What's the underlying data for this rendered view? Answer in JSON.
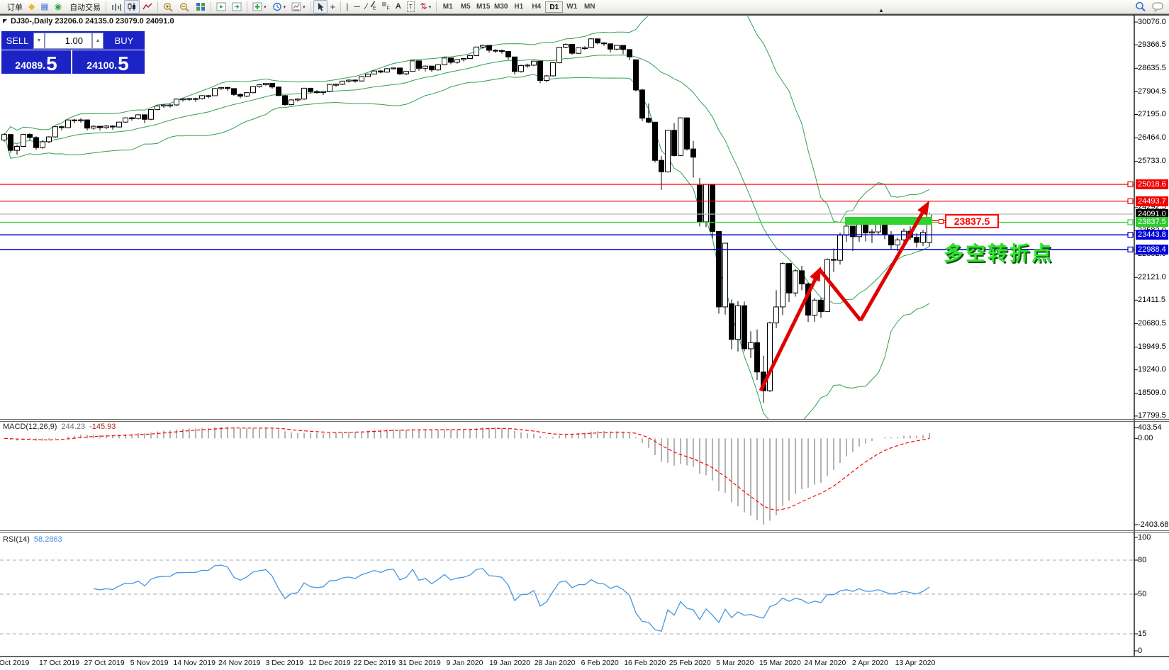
{
  "toolbar": {
    "new_order_label": "订单",
    "autotrading_label": "自动交易",
    "items": [
      {
        "kind": "button",
        "name": "new-order",
        "icon": "form",
        "label_key": "new_order_label"
      },
      {
        "kind": "icon",
        "name": "gold"
      },
      {
        "kind": "icon",
        "name": "reports"
      },
      {
        "kind": "icon",
        "name": "community"
      },
      {
        "kind": "button",
        "name": "autotrading",
        "icon": "playdot",
        "label_key": "autotrading_label"
      },
      {
        "kind": "sep"
      },
      {
        "kind": "icon",
        "name": "bar-chart"
      },
      {
        "kind": "icon",
        "name": "candle-chart",
        "active": true
      },
      {
        "kind": "icon",
        "name": "line-chart"
      },
      {
        "kind": "sep"
      },
      {
        "kind": "icon",
        "name": "zoom-in"
      },
      {
        "kind": "icon",
        "name": "zoom-out"
      },
      {
        "kind": "icon",
        "name": "tile-windows"
      },
      {
        "kind": "sep"
      },
      {
        "kind": "icon",
        "name": "auto-scroll"
      },
      {
        "kind": "icon",
        "name": "chart-shift"
      },
      {
        "kind": "sep"
      },
      {
        "kind": "icon",
        "name": "indicators",
        "caret": true
      },
      {
        "kind": "icon",
        "name": "periods",
        "caret": true
      },
      {
        "kind": "icon",
        "name": "templates",
        "caret": true
      },
      {
        "kind": "sep"
      },
      {
        "kind": "icon",
        "name": "cursor",
        "active": true
      },
      {
        "kind": "icon",
        "name": "crosshair"
      },
      {
        "kind": "sep"
      },
      {
        "kind": "icon",
        "name": "vertical-line"
      },
      {
        "kind": "icon",
        "name": "horizontal-line"
      },
      {
        "kind": "icon",
        "name": "trendline"
      },
      {
        "kind": "icon",
        "name": "channel"
      },
      {
        "kind": "icon",
        "name": "fibonacci"
      },
      {
        "kind": "icon",
        "name": "text"
      },
      {
        "kind": "icon",
        "name": "text-label"
      },
      {
        "kind": "icon",
        "name": "arrows",
        "caret": true
      },
      {
        "kind": "sep"
      }
    ],
    "timeframes": [
      "M1",
      "M5",
      "M15",
      "M30",
      "H1",
      "H4",
      "D1",
      "W1",
      "MN"
    ],
    "active_timeframe": "D1",
    "right_icons": [
      "search",
      "chat"
    ]
  },
  "chart": {
    "title": "DJ30-,Daily 23206.0 24135.0 23079.0 24091.0"
  },
  "quote": {
    "sell_label": "SELL",
    "buy_label": "BUY",
    "volume": "1.00",
    "sell_int": "24089",
    "sell_dot": ".",
    "sell_pip": "5",
    "buy_int": "24100",
    "buy_dot": ".",
    "buy_pip": "5"
  },
  "price_axis": {
    "ticks": [
      "30076.0",
      "29366.5",
      "28635.5",
      "27904.5",
      "27195.0",
      "26464.0",
      "25733.0",
      "24292.5",
      "23582.0",
      "22852.0",
      "22121.0",
      "21411.5",
      "20680.5",
      "19949.5",
      "19240.0",
      "18509.0",
      "17799.5"
    ],
    "objects": [
      {
        "text": "25018.6",
        "price": 25018.6,
        "bg": "#f20000",
        "line": "#f20000",
        "marker": true
      },
      {
        "text": "24493.7",
        "price": 24493.7,
        "bg": "#f20000",
        "line": "#f20000",
        "marker": true
      },
      {
        "text": "24091.0",
        "price": 24091.0,
        "bg": "#000000",
        "line": "#b8b8b8",
        "marker": false
      },
      {
        "text": "23837.5",
        "price": 23837.5,
        "bg": "#2fcb2f",
        "line": "#2fd32f",
        "marker": true
      },
      {
        "text": "23443.8",
        "price": 23443.8,
        "bg": "#0000dd",
        "line": "#0000cc",
        "marker": true
      },
      {
        "text": "22988.4",
        "price": 22988.4,
        "bg": "#0000dd",
        "line": "#0000cc",
        "marker": true
      }
    ]
  },
  "macd": {
    "name_label": "MACD(12,26,9)",
    "value": "244.23",
    "signal": "-145.93",
    "axis_labels": [
      "403.54",
      "0.00",
      "-2403.68"
    ]
  },
  "rsi": {
    "name_label": "RSI(14)",
    "value": "58.2863",
    "axis_labels": [
      "100",
      "80",
      "50",
      "15",
      "0"
    ],
    "levels": [
      80,
      50,
      15
    ]
  },
  "date_axis": {
    "labels": [
      "Oct 2019",
      "17 Oct 2019",
      "27 Oct 2019",
      "5 Nov 2019",
      "14 Nov 2019",
      "24 Nov 2019",
      "3 Dec 2019",
      "12 Dec 2019",
      "22 Dec 2019",
      "31 Dec 2019",
      "9 Jan 2020",
      "19 Jan 2020",
      "28 Jan 2020",
      "6 Feb 2020",
      "16 Feb 2020",
      "25 Feb 2020",
      "5 Mar 2020",
      "15 Mar 2020",
      "24 Mar 2020",
      "2 Apr 2020",
      "13 Apr 2020"
    ]
  },
  "annotations": {
    "price_label": "23837.5",
    "turning_text": "多空转折点"
  },
  "chart_data": {
    "type": "candlestick",
    "symbol": "DJ30-",
    "timeframe": "Daily",
    "title_ohlc": {
      "open": "23206.0",
      "high": "24135.0",
      "low": "23079.0",
      "close": "24091.0"
    },
    "price_range_visible": [
      17730,
      30210
    ],
    "horizontal_lines": [
      25018.6,
      24493.7,
      24091.0,
      23837.5,
      23443.8,
      22988.4
    ],
    "indicators": [
      {
        "name": "Bollinger Bands",
        "color": "green"
      },
      {
        "name": "MACD",
        "params": [
          12,
          26,
          9
        ],
        "value": 244.23,
        "signal": -145.93,
        "scale": [
          403.54,
          0.0,
          -2403.68
        ]
      },
      {
        "name": "RSI",
        "params": [
          14
        ],
        "value": 58.2863,
        "scale": [
          100,
          80,
          50,
          15,
          0
        ]
      }
    ],
    "candles": [
      [
        26400,
        26610,
        26350,
        26573
      ],
      [
        26573,
        26590,
        26000,
        26078
      ],
      [
        26078,
        26250,
        25940,
        26201
      ],
      [
        26201,
        26590,
        26180,
        26574
      ],
      [
        26574,
        26610,
        26400,
        26478
      ],
      [
        26478,
        26520,
        26100,
        26164
      ],
      [
        26164,
        26400,
        26130,
        26346
      ],
      [
        26346,
        26520,
        26300,
        26497
      ],
      [
        26497,
        26830,
        26470,
        26816
      ],
      [
        26816,
        26850,
        26700,
        26787
      ],
      [
        26787,
        27040,
        26770,
        27025
      ],
      [
        27025,
        27060,
        26920,
        27002
      ],
      [
        27002,
        27080,
        26940,
        27026
      ],
      [
        27026,
        27040,
        26700,
        26770
      ],
      [
        26770,
        26860,
        26720,
        26828
      ],
      [
        26828,
        26840,
        26700,
        26788
      ],
      [
        26788,
        26870,
        26740,
        26834
      ],
      [
        26834,
        26860,
        26720,
        26805
      ],
      [
        26805,
        26970,
        26790,
        26958
      ],
      [
        26958,
        27100,
        26940,
        27090
      ],
      [
        27090,
        27120,
        27000,
        27071
      ],
      [
        27071,
        27200,
        27040,
        27187
      ],
      [
        27187,
        27200,
        26920,
        27046
      ],
      [
        27046,
        27360,
        27020,
        27347
      ],
      [
        27347,
        27480,
        27330,
        27462
      ],
      [
        27462,
        27510,
        27400,
        27492
      ],
      [
        27492,
        27530,
        27410,
        27492
      ],
      [
        27492,
        27690,
        27460,
        27674
      ],
      [
        27674,
        27700,
        27600,
        27681
      ],
      [
        27681,
        27710,
        27620,
        27691
      ],
      [
        27691,
        27720,
        27590,
        27691
      ],
      [
        27691,
        27800,
        27660,
        27783
      ],
      [
        27783,
        27810,
        27700,
        27781
      ],
      [
        27781,
        28020,
        27770,
        28004
      ],
      [
        28004,
        28050,
        27960,
        28036
      ],
      [
        28036,
        28060,
        27930,
        28004
      ],
      [
        28004,
        28010,
        27780,
        27821
      ],
      [
        27821,
        27850,
        27700,
        27766
      ],
      [
        27766,
        27890,
        27740,
        27875
      ],
      [
        27875,
        28080,
        27860,
        28066
      ],
      [
        28066,
        28140,
        28030,
        28121
      ],
      [
        28121,
        28180,
        28090,
        28164
      ],
      [
        28164,
        28170,
        28000,
        28051
      ],
      [
        28051,
        28060,
        27770,
        27783
      ],
      [
        27783,
        27800,
        27460,
        27502
      ],
      [
        27502,
        27670,
        27480,
        27649
      ],
      [
        27649,
        27700,
        27600,
        27677
      ],
      [
        27677,
        28030,
        27650,
        28015
      ],
      [
        28015,
        28020,
        27850,
        27909
      ],
      [
        27909,
        27950,
        27840,
        27881
      ],
      [
        27881,
        27930,
        27800,
        27911
      ],
      [
        27911,
        28150,
        27890,
        28132
      ],
      [
        28132,
        28160,
        28060,
        28135
      ],
      [
        28135,
        28250,
        28110,
        28235
      ],
      [
        28235,
        28290,
        28190,
        28267
      ],
      [
        28267,
        28290,
        28190,
        28239
      ],
      [
        28239,
        28390,
        28220,
        28376
      ],
      [
        28376,
        28470,
        28360,
        28455
      ],
      [
        28455,
        28570,
        28440,
        28551
      ],
      [
        28551,
        28580,
        28480,
        28515
      ],
      [
        28515,
        28640,
        28500,
        28621
      ],
      [
        28621,
        28660,
        28600,
        28645
      ],
      [
        28645,
        28650,
        28430,
        28462
      ],
      [
        28462,
        28560,
        28420,
        28538
      ],
      [
        28538,
        28880,
        28530,
        28868
      ],
      [
        28868,
        28870,
        28560,
        28634
      ],
      [
        28634,
        28720,
        28540,
        28703
      ],
      [
        28703,
        28710,
        28520,
        28583
      ],
      [
        28583,
        28760,
        28560,
        28745
      ],
      [
        28745,
        28970,
        28730,
        28956
      ],
      [
        28956,
        28960,
        28760,
        28823
      ],
      [
        28823,
        28920,
        28780,
        28907
      ],
      [
        28907,
        28950,
        28850,
        28939
      ],
      [
        28939,
        29040,
        28920,
        29030
      ],
      [
        29030,
        29300,
        29010,
        29297
      ],
      [
        29297,
        29370,
        29250,
        29348
      ],
      [
        29348,
        29350,
        29120,
        29196
      ],
      [
        29196,
        29230,
        29110,
        29186
      ],
      [
        29186,
        29220,
        29090,
        29160
      ],
      [
        29160,
        29170,
        28910,
        28989
      ],
      [
        28989,
        28990,
        28440,
        28535
      ],
      [
        28535,
        28750,
        28500,
        28722
      ],
      [
        28722,
        28780,
        28650,
        28734
      ],
      [
        28734,
        28870,
        28700,
        28859
      ],
      [
        28859,
        28860,
        28170,
        28256
      ],
      [
        28256,
        28420,
        28200,
        28399
      ],
      [
        28399,
        28820,
        28380,
        28807
      ],
      [
        28807,
        29300,
        28790,
        29290
      ],
      [
        29290,
        29410,
        29260,
        29379
      ],
      [
        29379,
        29390,
        29060,
        29102
      ],
      [
        29102,
        29290,
        29080,
        29276
      ],
      [
        29276,
        29320,
        29210,
        29276
      ],
      [
        29276,
        29570,
        29260,
        29551
      ],
      [
        29551,
        29560,
        29380,
        29423
      ],
      [
        29423,
        29450,
        29330,
        29398
      ],
      [
        29398,
        29400,
        29120,
        29232
      ],
      [
        29232,
        29360,
        29200,
        29348
      ],
      [
        29348,
        29350,
        29080,
        29219
      ],
      [
        29219,
        29230,
        28890,
        28992
      ],
      [
        28900,
        28910,
        27910,
        27960
      ],
      [
        27960,
        28000,
        26990,
        27081
      ],
      [
        27081,
        27540,
        26920,
        26957
      ],
      [
        26957,
        26960,
        25700,
        25766
      ],
      [
        25766,
        25900,
        24850,
        25409
      ],
      [
        25409,
        26710,
        25390,
        26703
      ],
      [
        26703,
        26930,
        25890,
        25917
      ],
      [
        25917,
        27100,
        25910,
        27090
      ],
      [
        27090,
        27100,
        26070,
        26121
      ],
      [
        26121,
        26370,
        25230,
        25864
      ],
      [
        24990,
        25220,
        23710,
        23851
      ],
      [
        23851,
        25030,
        23690,
        25018
      ],
      [
        25018,
        25020,
        23330,
        23553
      ],
      [
        23553,
        23560,
        20990,
        21200
      ],
      [
        21200,
        23190,
        20960,
        23185
      ],
      [
        21300,
        21430,
        19880,
        20188
      ],
      [
        20188,
        21380,
        19810,
        21237
      ],
      [
        21237,
        21370,
        19820,
        19898
      ],
      [
        19898,
        20440,
        19610,
        20087
      ],
      [
        20087,
        20500,
        18920,
        19173
      ],
      [
        19173,
        19680,
        18210,
        18591
      ],
      [
        18591,
        20740,
        18550,
        20704
      ],
      [
        20704,
        21720,
        20540,
        21200
      ],
      [
        21200,
        22590,
        20950,
        22552
      ],
      [
        22552,
        22570,
        21350,
        21636
      ],
      [
        21636,
        22380,
        21520,
        22327
      ],
      [
        22327,
        22480,
        21720,
        21917
      ],
      [
        21917,
        21960,
        20730,
        20943
      ],
      [
        20943,
        21480,
        20740,
        21413
      ],
      [
        21413,
        21480,
        20860,
        21052
      ],
      [
        21052,
        22710,
        21050,
        22679
      ],
      [
        22679,
        23020,
        22290,
        22653
      ],
      [
        22653,
        23510,
        22520,
        23433
      ],
      [
        23433,
        23750,
        23230,
        23719
      ],
      [
        23719,
        23730,
        22940,
        23390
      ],
      [
        23390,
        23960,
        23230,
        23949
      ],
      [
        23949,
        23950,
        23240,
        23504
      ],
      [
        23504,
        23620,
        23190,
        23537
      ],
      [
        23537,
        23880,
        23440,
        23780
      ],
      [
        23780,
        23830,
        23310,
        23450
      ],
      [
        23450,
        23560,
        23000,
        23130
      ],
      [
        23130,
        23350,
        22940,
        23290
      ],
      [
        23290,
        23640,
        23200,
        23560
      ],
      [
        23560,
        23710,
        23290,
        23370
      ],
      [
        23370,
        23490,
        23050,
        23210
      ],
      [
        23210,
        23600,
        23100,
        23520
      ],
      [
        23206,
        24135,
        23079,
        24091
      ]
    ]
  }
}
